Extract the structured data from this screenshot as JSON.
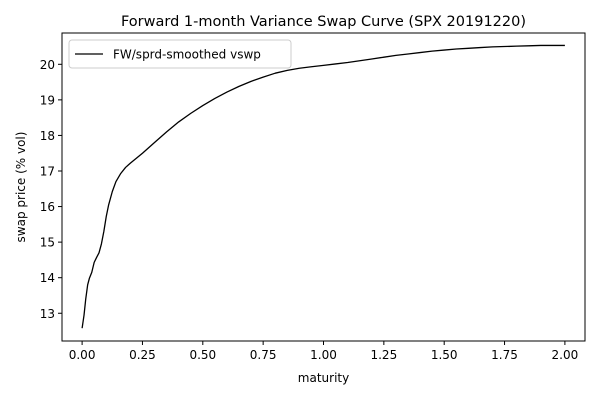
{
  "chart_data": {
    "type": "line",
    "title": "Forward 1-month Variance Swap Curve (SPX 20191220)",
    "xlabel": "maturity",
    "ylabel": "swap price (% vol)",
    "xlim": [
      -0.0833,
      2.0833
    ],
    "ylim": [
      12.22,
      20.88
    ],
    "xticks": [
      0.0,
      0.25,
      0.5,
      0.75,
      1.0,
      1.25,
      1.5,
      1.75,
      2.0
    ],
    "xtick_labels": [
      "0.00",
      "0.25",
      "0.50",
      "0.75",
      "1.00",
      "1.25",
      "1.50",
      "1.75",
      "2.00"
    ],
    "yticks": [
      13,
      14,
      15,
      16,
      17,
      18,
      19,
      20
    ],
    "ytick_labels": [
      "13",
      "14",
      "15",
      "16",
      "17",
      "18",
      "19",
      "20"
    ],
    "grid": false,
    "legend_position": "upper-left",
    "series": [
      {
        "name": "FW/sprd-smoothed vswp",
        "color": "#000000",
        "x": [
          0.0,
          0.008,
          0.015,
          0.023,
          0.03,
          0.04,
          0.05,
          0.06,
          0.07,
          0.08,
          0.09,
          0.1,
          0.11,
          0.125,
          0.14,
          0.16,
          0.18,
          0.2,
          0.25,
          0.3,
          0.35,
          0.4,
          0.45,
          0.5,
          0.55,
          0.6,
          0.65,
          0.7,
          0.75,
          0.8,
          0.85,
          0.9,
          0.95,
          1.0,
          1.05,
          1.1,
          1.15,
          1.2,
          1.25,
          1.3,
          1.35,
          1.4,
          1.45,
          1.5,
          1.55,
          1.6,
          1.65,
          1.7,
          1.75,
          1.8,
          1.85,
          1.9,
          1.95,
          2.0
        ],
        "y": [
          12.58,
          12.95,
          13.4,
          13.8,
          13.98,
          14.15,
          14.43,
          14.57,
          14.7,
          14.95,
          15.3,
          15.72,
          16.05,
          16.42,
          16.7,
          16.93,
          17.1,
          17.22,
          17.5,
          17.8,
          18.1,
          18.38,
          18.62,
          18.84,
          19.04,
          19.22,
          19.38,
          19.52,
          19.64,
          19.75,
          19.83,
          19.89,
          19.93,
          19.97,
          20.01,
          20.05,
          20.1,
          20.15,
          20.2,
          20.25,
          20.29,
          20.33,
          20.37,
          20.4,
          20.43,
          20.45,
          20.47,
          20.49,
          20.5,
          20.51,
          20.52,
          20.53,
          20.53,
          20.53
        ]
      }
    ]
  }
}
